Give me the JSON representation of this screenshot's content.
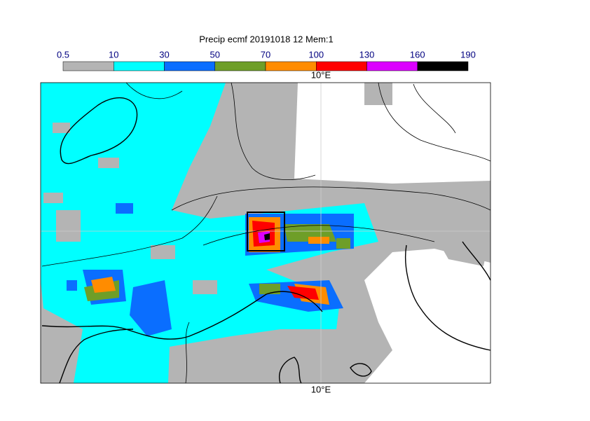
{
  "title": "Precip ecmf 20191018 12 Mem:1",
  "legend": {
    "bounds": [
      0.5,
      10,
      30,
      50,
      70,
      100,
      130,
      160,
      190
    ],
    "colors": [
      "#b4b4b4",
      "#00ffff",
      "#0a6eff",
      "#6e9e28",
      "#ff8c00",
      "#ff0000",
      "#dc00ff",
      "#000000"
    ]
  },
  "map": {
    "top_axis_label": "10°E",
    "bottom_axis_label": "10°E"
  }
}
